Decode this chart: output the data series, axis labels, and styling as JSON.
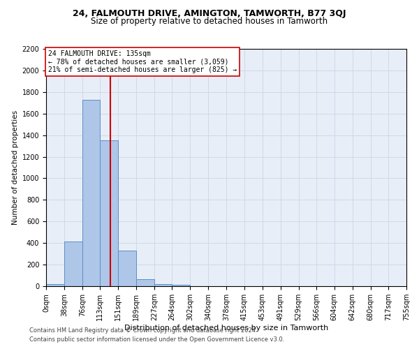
{
  "title1": "24, FALMOUTH DRIVE, AMINGTON, TAMWORTH, B77 3QJ",
  "title2": "Size of property relative to detached houses in Tamworth",
  "xlabel": "Distribution of detached houses by size in Tamworth",
  "ylabel": "Number of detached properties",
  "footer1": "Contains HM Land Registry data © Crown copyright and database right 2024.",
  "footer2": "Contains public sector information licensed under the Open Government Licence v3.0.",
  "annotation_line1": "24 FALMOUTH DRIVE: 135sqm",
  "annotation_line2": "← 78% of detached houses are smaller (3,059)",
  "annotation_line3": "21% of semi-detached houses are larger (825) →",
  "property_size": 135,
  "bin_edges": [
    0,
    38,
    76,
    113,
    151,
    189,
    227,
    264,
    302,
    340,
    378,
    415,
    453,
    491,
    529,
    566,
    604,
    642,
    680,
    717,
    755
  ],
  "bar_heights": [
    20,
    415,
    1730,
    1355,
    330,
    65,
    20,
    10,
    0,
    0,
    0,
    0,
    0,
    0,
    0,
    0,
    0,
    0,
    0,
    0
  ],
  "bar_color": "#aec6e8",
  "bar_edge_color": "#5b8fc9",
  "grid_color": "#d0d8e8",
  "vline_color": "#cc0000",
  "annotation_border_color": "#cc0000",
  "background_color": "#e8eef8",
  "ylim": [
    0,
    2200
  ],
  "yticks": [
    0,
    200,
    400,
    600,
    800,
    1000,
    1200,
    1400,
    1600,
    1800,
    2000,
    2200
  ],
  "title1_fontsize": 9,
  "title2_fontsize": 8.5,
  "ylabel_fontsize": 7.5,
  "xlabel_fontsize": 8,
  "tick_fontsize": 7,
  "annotation_fontsize": 7,
  "footer_fontsize": 6
}
